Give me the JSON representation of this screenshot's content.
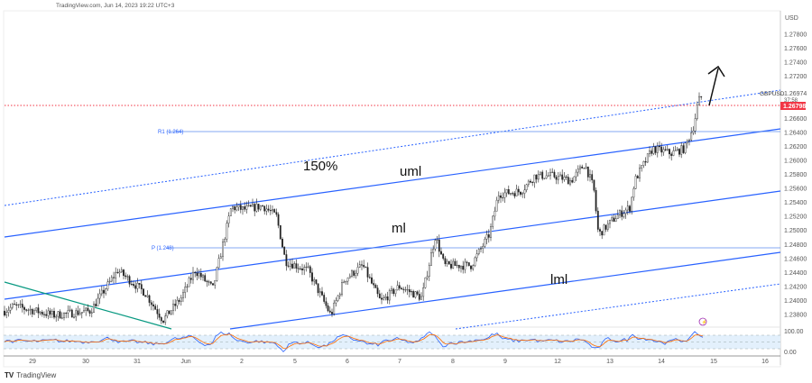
{
  "header": {
    "caption": "TradingView.com, Jun 14, 2023 19:22 UTC+3"
  },
  "footer": {
    "brand": "TradingView"
  },
  "colors": {
    "up": "#222222",
    "line": "#2962ff",
    "red": "#f23645",
    "osc_fast": "#2962ff",
    "osc_slow": "#ff6d00",
    "trend": "#089981"
  },
  "chart_data": {
    "type": "candlestick",
    "symbol": "GBPUSD",
    "currency": "USD",
    "last_price": "1.26974",
    "countdown": "37:58",
    "marked_price": "1.26798",
    "y_ticks": [
      "1.27800",
      "1.27600",
      "1.27400",
      "1.27200",
      "1.26600",
      "1.26400",
      "1.26200",
      "1.26000",
      "1.25800",
      "1.25600",
      "1.25400",
      "1.25200",
      "1.25000",
      "1.24800",
      "1.24600",
      "1.24400",
      "1.24200",
      "1.24000",
      "1.23800"
    ],
    "ylim": [
      1.2364,
      1.281
    ],
    "x_ticks": [
      "29",
      "30",
      "31",
      "Jun",
      "2",
      "5",
      "6",
      "7",
      "8",
      "9",
      "12",
      "13",
      "14",
      "15",
      "16"
    ],
    "price_path_note_units": "x in trading days from 29 May tick, y in price",
    "price_path": [
      [
        -0.53,
        1.2385
      ],
      [
        -0.36,
        1.2392
      ],
      [
        0.41,
        1.2379
      ],
      [
        1.1,
        1.2385
      ],
      [
        1.62,
        1.2443
      ],
      [
        2.14,
        1.2411
      ],
      [
        2.48,
        1.2372
      ],
      [
        2.83,
        1.2404
      ],
      [
        3.09,
        1.2443
      ],
      [
        3.43,
        1.2417
      ],
      [
        3.78,
        1.2533
      ],
      [
        4.03,
        1.253
      ],
      [
        4.38,
        1.2535
      ],
      [
        4.64,
        1.252
      ],
      [
        4.81,
        1.2456
      ],
      [
        5.24,
        1.2443
      ],
      [
        5.67,
        1.2379
      ],
      [
        5.93,
        1.243
      ],
      [
        6.28,
        1.245
      ],
      [
        6.62,
        1.2398
      ],
      [
        6.97,
        1.242
      ],
      [
        7.4,
        1.2404
      ],
      [
        7.66,
        1.2492
      ],
      [
        7.83,
        1.245
      ],
      [
        8.34,
        1.245
      ],
      [
        8.69,
        1.2495
      ],
      [
        8.86,
        1.2552
      ],
      [
        9.29,
        1.2556
      ],
      [
        9.55,
        1.2578
      ],
      [
        9.9,
        1.2578
      ],
      [
        10.24,
        1.2571
      ],
      [
        10.5,
        1.2595
      ],
      [
        10.67,
        1.256
      ],
      [
        10.76,
        1.2494
      ],
      [
        11.1,
        1.252
      ],
      [
        11.36,
        1.2533
      ],
      [
        11.45,
        1.2571
      ],
      [
        11.79,
        1.2617
      ],
      [
        12.14,
        1.261
      ],
      [
        12.4,
        1.2617
      ],
      [
        12.57,
        1.2649
      ],
      [
        12.66,
        1.2685
      ],
      [
        12.79,
        1.2697
      ]
    ],
    "levels": {
      "r1_label": "R1 (1.264)",
      "p_label": "P (1.248)"
    },
    "annotations": {
      "fib": "150%",
      "uml": "uml",
      "ml": "ml",
      "lml": "lml"
    },
    "oscillator": {
      "ticks": [
        "100.00",
        "0.00"
      ]
    }
  }
}
